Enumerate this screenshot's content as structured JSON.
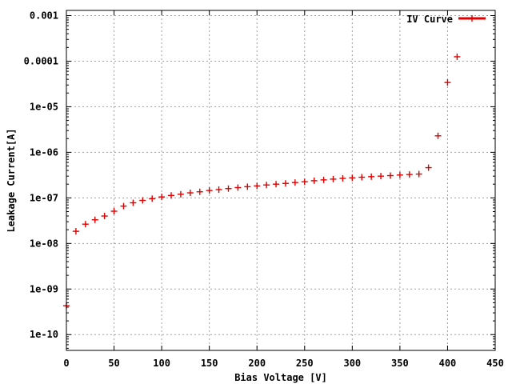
{
  "chart_data": {
    "type": "scatter",
    "title": "",
    "xlabel": "Bias Voltage [V]",
    "ylabel": "Leakage Current[A]",
    "xlim": [
      0,
      450
    ],
    "ylim": [
      4.5e-11,
      0.0013
    ],
    "y_scale": "log",
    "grid": true,
    "legend_position": "top-right",
    "x_ticks": [
      {
        "value": 0,
        "label": "0"
      },
      {
        "value": 50,
        "label": "50"
      },
      {
        "value": 100,
        "label": "100"
      },
      {
        "value": 150,
        "label": "150"
      },
      {
        "value": 200,
        "label": "200"
      },
      {
        "value": 250,
        "label": "250"
      },
      {
        "value": 300,
        "label": "300"
      },
      {
        "value": 350,
        "label": "350"
      },
      {
        "value": 400,
        "label": "400"
      },
      {
        "value": 450,
        "label": "450"
      }
    ],
    "y_ticks": [
      {
        "value": 1e-10,
        "label": "1e-10"
      },
      {
        "value": 1e-09,
        "label": "1e-09"
      },
      {
        "value": 1e-08,
        "label": "1e-08"
      },
      {
        "value": 1e-07,
        "label": "1e-07"
      },
      {
        "value": 1e-06,
        "label": "1e-06"
      },
      {
        "value": 1e-05,
        "label": "1e-05"
      },
      {
        "value": 0.0001,
        "label": "0.0001"
      },
      {
        "value": 0.001,
        "label": "0.001"
      }
    ],
    "series": [
      {
        "name": "IV Curve",
        "color": "#e00000",
        "marker": "plus",
        "x": [
          0,
          10,
          20,
          30,
          40,
          50,
          60,
          70,
          80,
          90,
          100,
          110,
          120,
          130,
          140,
          150,
          160,
          170,
          180,
          190,
          200,
          210,
          220,
          230,
          240,
          250,
          260,
          270,
          280,
          290,
          300,
          310,
          320,
          330,
          340,
          350,
          360,
          370,
          380,
          390,
          400,
          410
        ],
        "y": [
          4.3e-10,
          1.85e-08,
          2.65e-08,
          3.3e-08,
          4e-08,
          5.1e-08,
          6.6e-08,
          7.8e-08,
          8.8e-08,
          9.6e-08,
          1.05e-07,
          1.13e-07,
          1.2e-07,
          1.29e-07,
          1.36e-07,
          1.45e-07,
          1.52e-07,
          1.6e-07,
          1.68e-07,
          1.76e-07,
          1.83e-07,
          1.92e-07,
          2e-07,
          2.08e-07,
          2.17e-07,
          2.26e-07,
          2.38e-07,
          2.48e-07,
          2.58e-07,
          2.68e-07,
          2.75e-07,
          2.84e-07,
          2.92e-07,
          3e-07,
          3.08e-07,
          3.17e-07,
          3.26e-07,
          3.33e-07,
          4.6e-07,
          2.3e-06,
          3.4e-05,
          0.000125
        ]
      }
    ]
  }
}
